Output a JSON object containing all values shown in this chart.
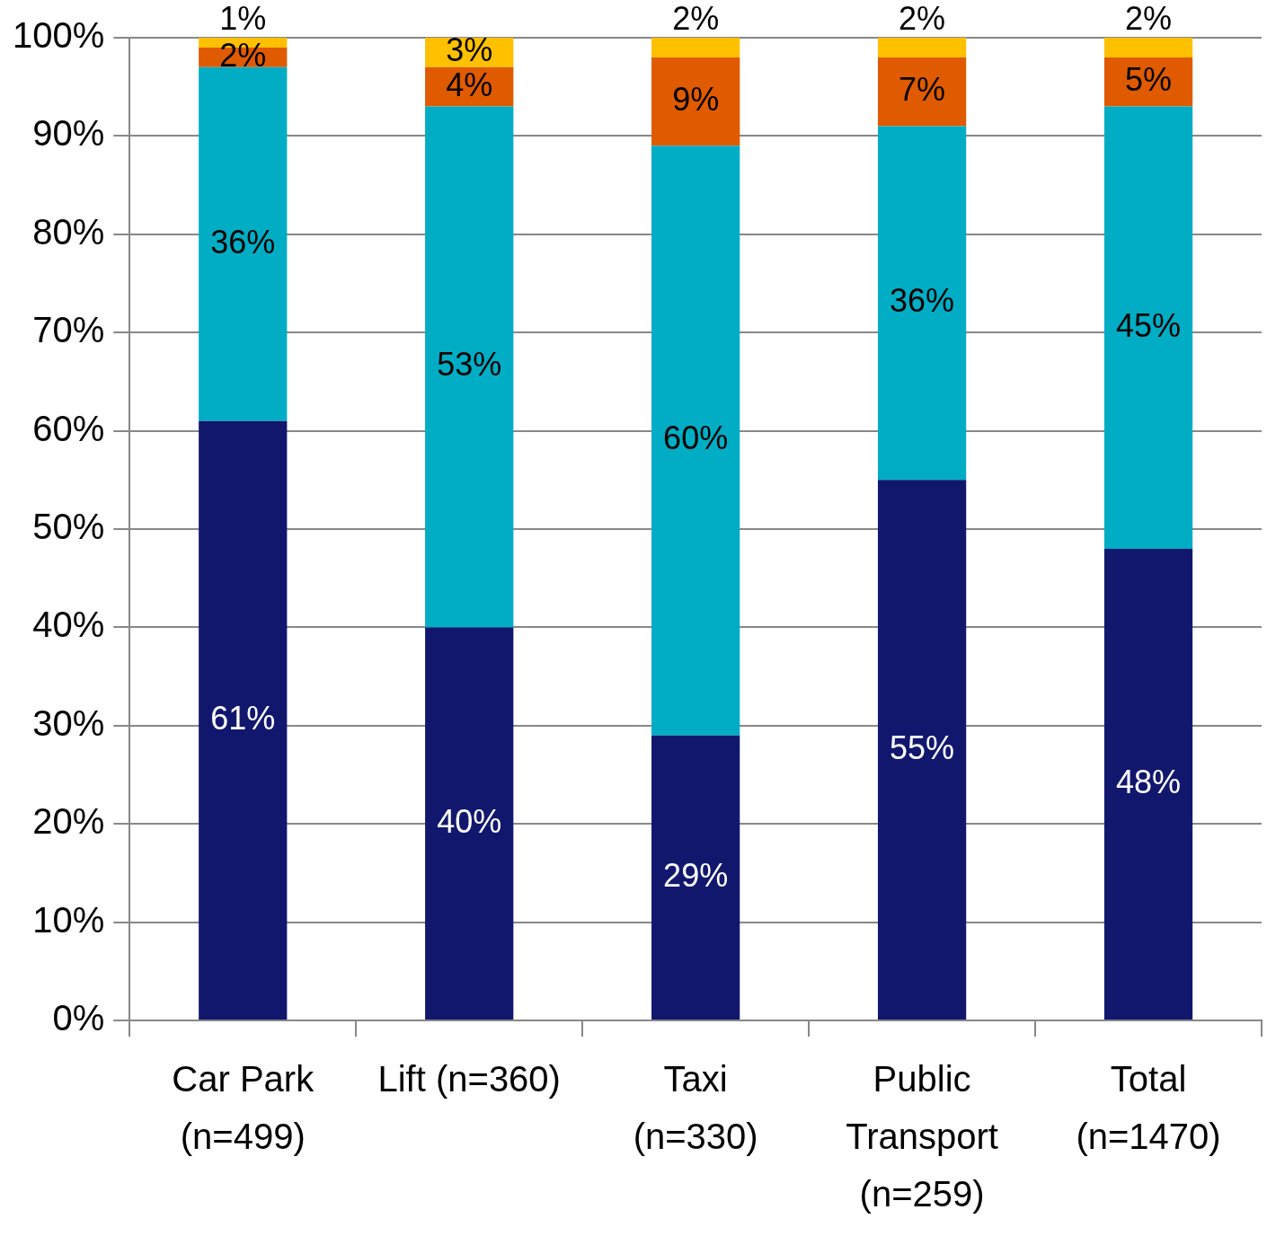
{
  "chart_data": {
    "type": "bar",
    "stacked": true,
    "categories": [
      "Car Park (n=499)",
      "Lift (n=360)",
      "Taxi (n=330)",
      "Public Transport (n=259)",
      "Total (n=1470)"
    ],
    "series": [
      {
        "color": "#12176e",
        "values": [
          61,
          40,
          29,
          55,
          48
        ],
        "value_labels": [
          "61%",
          "40%",
          "29%",
          "55%",
          "48%"
        ]
      },
      {
        "color": "#00adc4",
        "values": [
          36,
          53,
          60,
          36,
          45
        ],
        "value_labels": [
          "36%",
          "53%",
          "60%",
          "36%",
          "45%"
        ]
      },
      {
        "color": "#e05a00",
        "values": [
          2,
          4,
          9,
          7,
          5
        ],
        "value_labels": [
          "2%",
          "4%",
          "9%",
          "7%",
          "5%"
        ]
      },
      {
        "color": "#ffc000",
        "values": [
          1,
          3,
          2,
          2,
          2
        ],
        "value_labels": [
          "1%",
          "3%",
          "2%",
          "2%",
          "2%"
        ]
      }
    ],
    "ylim": [
      0,
      100
    ],
    "yticks": [
      {
        "value": 0,
        "label": "0%"
      },
      {
        "value": 10,
        "label": "10%"
      },
      {
        "value": 20,
        "label": "20%"
      },
      {
        "value": 30,
        "label": "30%"
      },
      {
        "value": 40,
        "label": "40%"
      },
      {
        "value": 50,
        "label": "50%"
      },
      {
        "value": 60,
        "label": "60%"
      },
      {
        "value": 70,
        "label": "70%"
      },
      {
        "value": 80,
        "label": "80%"
      },
      {
        "value": 90,
        "label": "90%"
      },
      {
        "value": 100,
        "label": "100%"
      }
    ],
    "grid": "y",
    "legend": false
  }
}
